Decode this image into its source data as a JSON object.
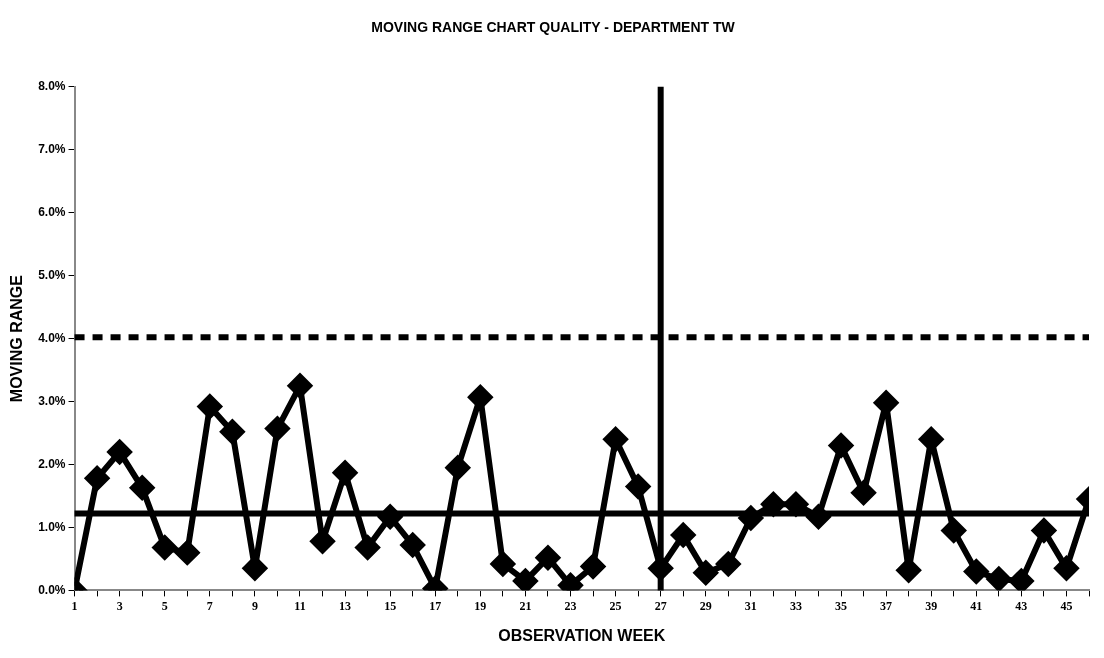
{
  "chart_data": {
    "type": "line",
    "title": "MOVING RANGE CHART QUALITY - DEPARTMENT TW",
    "xlabel": "OBSERVATION WEEK",
    "ylabel": "MOVING RANGE",
    "x": [
      1,
      2,
      3,
      4,
      5,
      6,
      7,
      8,
      9,
      10,
      11,
      12,
      13,
      14,
      15,
      16,
      17,
      18,
      19,
      20,
      21,
      22,
      23,
      24,
      25,
      26,
      27,
      28,
      29,
      30,
      31,
      32,
      33,
      34,
      35,
      36,
      37,
      38,
      39,
      40,
      41,
      42,
      43,
      44,
      45,
      46
    ],
    "series": [
      {
        "color": "#000000",
        "values": [
          0,
          1.78,
          2.2,
          1.63,
          0.68,
          0.6,
          2.92,
          2.52,
          0.35,
          2.57,
          3.25,
          0.78,
          1.87,
          0.68,
          1.17,
          0.72,
          0.03,
          1.95,
          3.07,
          0.42,
          0.15,
          0.52,
          0.08,
          0.38,
          2.4,
          1.65,
          0.35,
          0.88,
          0.28,
          0.42,
          1.15,
          1.37,
          1.37,
          1.17,
          2.3,
          1.55,
          2.98,
          0.32,
          2.4,
          0.95,
          0.3,
          0.18,
          0.15,
          0.95,
          0.35,
          1.45
        ]
      }
    ],
    "xlim": [
      1,
      46
    ],
    "xticks": [
      1,
      {
        "value": 2,
        "label": null
      },
      3,
      {
        "value": 4,
        "label": null
      },
      5,
      {
        "value": 6,
        "label": null
      },
      7,
      {
        "value": 8,
        "label": null
      },
      9,
      {
        "value": 10,
        "label": null
      },
      11,
      {
        "value": 12,
        "label": null
      },
      13,
      {
        "value": 14,
        "label": null
      },
      15,
      {
        "value": 16,
        "label": null
      },
      17,
      {
        "value": 18,
        "label": null
      },
      19,
      {
        "value": 20,
        "label": null
      },
      21,
      {
        "value": 22,
        "label": null
      },
      23,
      {
        "value": 24,
        "label": null
      },
      25,
      {
        "value": 26,
        "label": null
      },
      27,
      {
        "value": 28,
        "label": null
      },
      29,
      {
        "value": 30,
        "label": null
      },
      31,
      {
        "value": 32,
        "label": null
      },
      33,
      {
        "value": 34,
        "label": null
      },
      35,
      {
        "value": 36,
        "label": null
      },
      37,
      {
        "value": 38,
        "label": null
      },
      39,
      {
        "value": 40,
        "label": null
      },
      41,
      {
        "value": 42,
        "label": null
      },
      43,
      {
        "value": 44,
        "label": null
      },
      45,
      {
        "value": 46,
        "label": null
      }
    ],
    "ylim": [
      0,
      8
    ],
    "yticks": [
      {
        "value": 0,
        "label": "0.0%"
      },
      {
        "value": 1,
        "label": "1.0%"
      },
      {
        "value": 2,
        "label": "2.0%"
      },
      {
        "value": 3,
        "label": "3.0%"
      },
      {
        "value": 4,
        "label": "4.0%"
      },
      {
        "value": 5,
        "label": "5.0%"
      },
      {
        "value": 6,
        "label": "6.0%"
      },
      {
        "value": 7,
        "label": "7.0%"
      },
      {
        "value": 8,
        "label": "8.0%"
      }
    ],
    "ref_lines": [
      {
        "axis": "y",
        "value": 1.22,
        "color": "#000000",
        "line_style": "solid"
      },
      {
        "axis": "y",
        "value": 4.02,
        "color": "#000000",
        "line_style": "dashed"
      },
      {
        "axis": "x",
        "value": 27,
        "color": "#000000",
        "line_style": "solid"
      }
    ],
    "grid": false,
    "legend": false,
    "marker": "diamond",
    "line_style": "solid"
  }
}
